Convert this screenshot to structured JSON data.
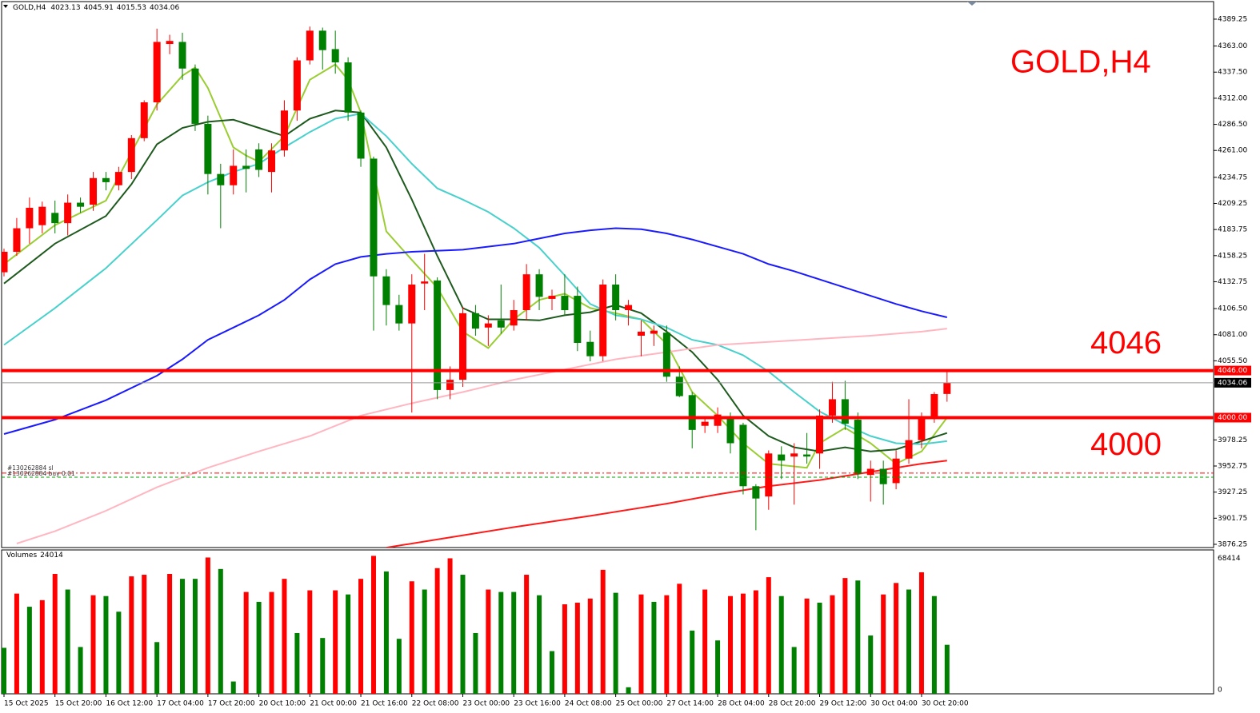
{
  "chart_data": {
    "type": "candlestick",
    "title": "GOLD,H4",
    "up_color": "#ff0000",
    "down_color": "#008000",
    "categories": [
      "15 Oct 2025",
      null,
      null,
      null,
      "15 Oct 20:00",
      null,
      null,
      null,
      "16 Oct 12:00",
      null,
      null,
      null,
      "17 Oct 04:00",
      null,
      null,
      null,
      "17 Oct 20:00",
      null,
      null,
      null,
      "20 Oct 10:00",
      null,
      null,
      null,
      "21 Oct 00:00",
      null,
      null,
      null,
      "21 Oct 16:00",
      null,
      null,
      null,
      "22 Oct 08:00",
      null,
      null,
      null,
      "23 Oct 00:00",
      null,
      null,
      null,
      "23 Oct 16:00",
      null,
      null,
      null,
      "24 Oct 08:00",
      null,
      null,
      null,
      "25 Oct 00:00",
      null,
      null,
      null,
      "27 Oct 14:00",
      null,
      null,
      null,
      "28 Oct 04:00",
      null,
      null,
      null,
      "28 Oct 20:00",
      null,
      null,
      null,
      "29 Oct 12:00",
      null,
      null,
      null,
      "30 Oct 04:00",
      null,
      null,
      null,
      "30 Oct 20:00",
      null,
      null
    ],
    "open": [
      4142,
      4162,
      4185,
      4188,
      4200,
      4190,
      4210,
      4208,
      4234,
      4227,
      4240,
      4273,
      4308,
      4365,
      4367,
      4341,
      4287,
      4238,
      4227,
      4246,
      4262,
      4240,
      4261,
      4300,
      4349,
      4378,
      4360,
      4347,
      4298,
      4253,
      4138,
      4110,
      4092,
      4131,
      4134,
      4027,
      4037,
      4102,
      4088,
      4095,
      4090,
      4105,
      4140,
      4116,
      4119,
      4119,
      4074,
      4060,
      4130,
      4105,
      4080,
      4082,
      4083,
      4040,
      4022,
      3992,
      3992,
      4000,
      3993,
      3933,
      3923,
      3964,
      3962,
      3964,
      3965,
      4002,
      4018,
      3998,
      3944,
      3950,
      3936,
      3960,
      3978,
      4000,
      4023.13
    ],
    "high": [
      4165,
      4195,
      4215,
      4211,
      4212,
      4218,
      4215,
      4240,
      4240,
      4245,
      4276,
      4310,
      4380,
      4374,
      4376,
      4345,
      4295,
      4248,
      4262,
      4262,
      4268,
      4268,
      4310,
      4352,
      4382,
      4381,
      4378,
      4352,
      4300,
      4255,
      4145,
      4120,
      4140,
      4160,
      4137,
      4050,
      4108,
      4110,
      4100,
      4130,
      4115,
      4150,
      4145,
      4125,
      4140,
      4128,
      4085,
      4135,
      4140,
      4115,
      4095,
      4090,
      4090,
      4050,
      4025,
      4000,
      4010,
      4005,
      3995,
      3935,
      3968,
      3972,
      3975,
      3985,
      4008,
      4035,
      4036,
      4005,
      3958,
      3958,
      3968,
      4018,
      4005,
      4025,
      4045.91
    ],
    "low": [
      4138,
      4158,
      4170,
      4180,
      4180,
      4178,
      4200,
      4202,
      4222,
      4222,
      4233,
      4270,
      4300,
      4355,
      4330,
      4280,
      4218,
      4185,
      4218,
      4220,
      4235,
      4220,
      4255,
      4290,
      4345,
      4340,
      4336,
      4290,
      4245,
      4085,
      4090,
      4085,
      4005,
      4105,
      4018,
      4018,
      4030,
      4080,
      4070,
      4082,
      4085,
      4095,
      4105,
      4105,
      4100,
      4065,
      4055,
      4055,
      4095,
      4090,
      4060,
      4070,
      4035,
      4020,
      3970,
      3985,
      3985,
      3965,
      3925,
      3890,
      3910,
      3940,
      3915,
      3955,
      3950,
      3995,
      3988,
      3940,
      3918,
      3915,
      3930,
      3955,
      3970,
      3995,
      4015.53
    ],
    "close": [
      4162,
      4185,
      4205,
      4206,
      4190,
      4210,
      4206,
      4234,
      4230,
      4240,
      4273,
      4308,
      4367,
      4368,
      4341,
      4287,
      4238,
      4227,
      4246,
      4243,
      4242,
      4261,
      4300,
      4349,
      4378,
      4359,
      4347,
      4298,
      4253,
      4138,
      4110,
      4092,
      4130,
      4133,
      4027,
      4037,
      4102,
      4087,
      4092,
      4088,
      4105,
      4140,
      4118,
      4119,
      4105,
      4073,
      4060,
      4130,
      4105,
      4110,
      4084,
      4085,
      4040,
      4021,
      3988,
      3996,
      4003,
      3975,
      3933,
      3921,
      3965,
      3958,
      3965,
      3962,
      4002,
      4018,
      3994,
      3945,
      3950,
      3935,
      3960,
      3978,
      4000,
      4023,
      4034.06
    ],
    "ylim": [
      3873.1,
      4406.4
    ],
    "yticks": [
      4389.25,
      {
        "value": 4363,
        "label": "4363.00"
      },
      {
        "value": 4337.5,
        "label": "4337.50"
      },
      {
        "value": 4312,
        "label": "4312.00"
      },
      {
        "value": 4286.5,
        "label": "4286.50"
      },
      {
        "value": 4261,
        "label": "4261.00"
      },
      4234.75,
      4209.25,
      4183.75,
      4158.25,
      4132.75,
      {
        "value": 4106.5,
        "label": "4106.50"
      },
      {
        "value": 4081,
        "label": "4081.00"
      },
      {
        "value": 4055.5,
        "label": "4055.50"
      },
      3978.25,
      3952.75,
      3927.25,
      3901.75,
      3876.25
    ],
    "indicators": [
      {
        "color": "#9acd32",
        "x": [
          0,
          4,
          8,
          12,
          14,
          15,
          16,
          18,
          19,
          20,
          22,
          24,
          26,
          27,
          28,
          30,
          32,
          34,
          36,
          38,
          40,
          42,
          44,
          46,
          48,
          50,
          52,
          54,
          56,
          58,
          60,
          63,
          64,
          66,
          68,
          70,
          72,
          74
        ],
        "values": [
          4150,
          4188,
          4212,
          4306,
          4334,
          4342,
          4322,
          4264,
          4256,
          4250,
          4275,
          4330,
          4345,
          4330,
          4298,
          4182,
          4154,
          4127,
          4084,
          4068,
          4096,
          4115,
          4121,
          4107,
          4102,
          4096,
          4072,
          4025,
          4002,
          3975,
          3955,
          3951,
          3975,
          3990,
          3975,
          3955,
          3967,
          4000
        ]
      },
      {
        "color": "#1e5a1e",
        "x": [
          0,
          4,
          8,
          10,
          12,
          14,
          16,
          18,
          20,
          22,
          24,
          26,
          28,
          30,
          32,
          34,
          36,
          38,
          40,
          42,
          44,
          46,
          48,
          50,
          52,
          54,
          56,
          58,
          60,
          62,
          64,
          66,
          68,
          70,
          72,
          74
        ],
        "values": [
          4131,
          4170,
          4197,
          4228,
          4267,
          4283,
          4289,
          4291,
          4283,
          4275,
          4292,
          4300,
          4298,
          4264,
          4213,
          4158,
          4107,
          4096,
          4096,
          4095,
          4100,
          4103,
          4110,
          4102,
          4084,
          4064,
          4037,
          4002,
          3982,
          3971,
          3967,
          3971,
          3967,
          3969,
          3977,
          3985
        ]
      },
      {
        "color": "#48d1cc",
        "x": [
          0,
          4,
          8,
          12,
          14,
          16,
          18,
          20,
          22,
          24,
          26,
          28,
          30,
          32,
          34,
          36,
          38,
          40,
          42,
          44,
          46,
          48,
          50,
          52,
          54,
          56,
          58,
          60,
          62,
          64,
          66,
          68,
          70,
          72,
          74
        ],
        "values": [
          4071,
          4107,
          4146,
          4193,
          4217,
          4230,
          4240,
          4248,
          4264,
          4279,
          4292,
          4297,
          4275,
          4248,
          4224,
          4213,
          4201,
          4185,
          4166,
          4139,
          4111,
          4100,
          4096,
          4088,
          4076,
          4071,
          4061,
          4045,
          4025,
          4006,
          3993,
          3982,
          3975,
          3974,
          3977
        ]
      },
      {
        "color": "#1a1aff",
        "x": [
          0,
          4,
          8,
          12,
          14,
          16,
          18,
          20,
          22,
          24,
          26,
          28,
          30,
          32,
          36,
          40,
          42,
          44,
          46,
          48,
          50,
          52,
          54,
          56,
          58,
          60,
          62,
          64,
          66,
          68,
          70,
          72,
          74
        ],
        "values": [
          3984,
          3998,
          4017,
          4041,
          4057,
          4076,
          4088,
          4100,
          4115,
          4135,
          4150,
          4157,
          4160,
          4162,
          4164,
          4170,
          4175,
          4180,
          4183,
          4185,
          4184,
          4180,
          4174,
          4167,
          4160,
          4150,
          4143,
          4135,
          4127,
          4119,
          4111,
          4104,
          4098
        ]
      },
      {
        "color": "#ffb6c1",
        "x": [
          1,
          4,
          8,
          12,
          16,
          20,
          24,
          28,
          32,
          36,
          40,
          44,
          48,
          52,
          56,
          60,
          64,
          68,
          72,
          74
        ],
        "values": [
          3877,
          3889,
          3909,
          3932,
          3951,
          3967,
          3982,
          4002,
          4014,
          4025,
          4037,
          4047,
          4057,
          4064,
          4071,
          4074,
          4077,
          4080,
          4084,
          4087
        ]
      },
      {
        "color": "#ff1a1a",
        "x": [
          30,
          34,
          40,
          46,
          52,
          56,
          60,
          64,
          68,
          72,
          74
        ],
        "values": [
          3873,
          3881,
          3893,
          3904,
          3916,
          3925,
          3933,
          3939,
          3947,
          3955,
          3958
        ]
      }
    ],
    "levels": [
      {
        "value": 4046,
        "label": "4046",
        "axis_label": "4046.00"
      },
      {
        "value": 4000,
        "label": "4000",
        "axis_label": "4000.00"
      }
    ],
    "level_color": "#ff0000",
    "orders": [
      {
        "value": 3945.8,
        "label": "#130262884 sl",
        "color": "#ff0000"
      },
      {
        "value": 3941.8,
        "label": "#130262884 buy 0.01",
        "color": "#00a000"
      }
    ],
    "volume": {
      "title": "Volumes",
      "rise_color": "#ff0000",
      "fall_color": "#008000",
      "values": [
        22535,
        49100,
        42660,
        45880,
        58750,
        51100,
        22940,
        48290,
        47890,
        40240,
        57550,
        58350,
        25350,
        58750,
        56340,
        56340,
        66800,
        61170,
        6040,
        49900,
        45070,
        49900,
        56340,
        29780,
        50700,
        27360,
        50700,
        48690,
        56340,
        67600,
        59960,
        26960,
        55130,
        51100,
        61570,
        66400,
        58350,
        29780,
        51100,
        49900,
        49900,
        58350,
        48290,
        20920,
        43860,
        44670,
        46680,
        60760,
        49500,
        3220,
        48690,
        45070,
        48290,
        53920,
        30990,
        51100,
        26160,
        47890,
        49100,
        50700,
        57140,
        47890,
        22940,
        46680,
        44670,
        48290,
        56740,
        55530,
        28570,
        48690,
        54320,
        51100,
        59560,
        47890,
        24014
      ],
      "ylim": [
        0,
        70500
      ],
      "yticks": [
        0,
        68414
      ]
    }
  }
}
